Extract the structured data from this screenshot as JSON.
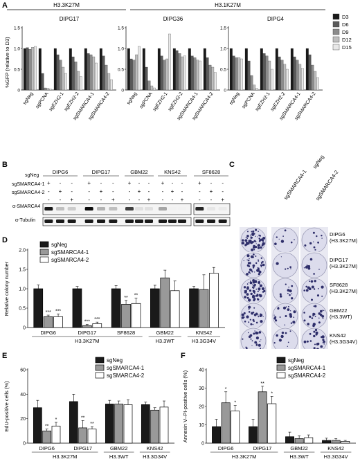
{
  "panels": {
    "A": "A",
    "B": "B",
    "C": "C",
    "D": "D",
    "E": "E",
    "F": "F"
  },
  "colors": {
    "D3": "#1a1a1a",
    "D6": "#595959",
    "D9": "#8c8c8c",
    "D12": "#bfbfbf",
    "D15": "#e8e8e8",
    "sgNeg": "#1a1a1a",
    "sgSMARCA4-1": "#999999",
    "sgSMARCA4-2": "#ffffff"
  },
  "panelA": {
    "header_left": "H3.3K27M",
    "header_right": "H3.1K27M",
    "ylabel": "%GFP (relative to D3)",
    "legend": [
      "D3",
      "D6",
      "D9",
      "D12",
      "D15"
    ],
    "charts": [
      {
        "title": "DIPG17"
      },
      {
        "title": "DIPG36"
      },
      {
        "title": "DIPG4"
      }
    ]
  },
  "chart_data": [
    {
      "type": "bar",
      "title": "DIPG17",
      "ylabel": "%GFP (relative to D3)",
      "ylim": [
        0,
        1.5
      ],
      "yticks": [
        "0",
        "0.5",
        "1.0",
        "1.5"
      ],
      "categories": [
        "sgNeg",
        "sgPCNA",
        "sgEZH2-1",
        "sgEZH2-2",
        "sgSMARCA4-1",
        "sgSMARCA4-2"
      ],
      "series": [
        {
          "name": "D3",
          "values": [
            1.0,
            1.0,
            1.0,
            1.0,
            1.0,
            1.0
          ]
        },
        {
          "name": "D6",
          "values": [
            1.02,
            0.4,
            0.85,
            0.8,
            0.88,
            0.82
          ]
        },
        {
          "name": "D9",
          "values": [
            0.98,
            0.05,
            0.72,
            0.68,
            0.85,
            0.6
          ]
        },
        {
          "name": "D12",
          "values": [
            1.03,
            0.04,
            0.55,
            0.45,
            0.8,
            0.4
          ]
        },
        {
          "name": "D15",
          "values": [
            1.05,
            0.02,
            0.4,
            0.32,
            0.65,
            0.25
          ]
        }
      ]
    },
    {
      "type": "bar",
      "title": "DIPG36",
      "ylabel": "%GFP (relative to D3)",
      "ylim": [
        0,
        1.5
      ],
      "yticks": [
        "0",
        "0.5",
        "1.0",
        "1.5"
      ],
      "categories": [
        "sgNeg",
        "sgPCNA",
        "sgEZH2-1",
        "sgEZH2-2",
        "sgSMARCA4-1",
        "sgSMARCA4-2"
      ],
      "series": [
        {
          "name": "D3",
          "values": [
            1.0,
            1.0,
            1.0,
            1.0,
            1.0,
            1.0
          ]
        },
        {
          "name": "D6",
          "values": [
            0.75,
            0.55,
            0.82,
            0.95,
            0.82,
            0.78
          ]
        },
        {
          "name": "D9",
          "values": [
            0.72,
            0.22,
            0.72,
            0.88,
            0.78,
            0.6
          ]
        },
        {
          "name": "D12",
          "values": [
            0.85,
            0.1,
            0.75,
            0.8,
            0.72,
            0.55
          ]
        },
        {
          "name": "D15",
          "values": [
            1.05,
            0.05,
            1.35,
            0.82,
            0.7,
            0.42
          ]
        }
      ]
    },
    {
      "type": "bar",
      "title": "DIPG4",
      "ylabel": "%GFP (relative to D3)",
      "ylim": [
        0,
        1.5
      ],
      "yticks": [
        "0",
        "0.5",
        "1.0",
        "1.5"
      ],
      "categories": [
        "sgNeg",
        "sgPCNA",
        "sgEZH2-1",
        "sgEZH2-2",
        "sgSMARCA4-1",
        "sgSMARCA4-2"
      ],
      "series": [
        {
          "name": "D3",
          "values": [
            1.0,
            1.0,
            1.0,
            1.0,
            1.0,
            1.0
          ]
        },
        {
          "name": "D6",
          "values": [
            0.82,
            0.7,
            0.88,
            0.8,
            0.8,
            0.85
          ]
        },
        {
          "name": "D9",
          "values": [
            0.78,
            0.35,
            0.82,
            0.72,
            0.72,
            0.6
          ]
        },
        {
          "name": "D12",
          "values": [
            0.78,
            0.12,
            0.7,
            0.62,
            0.62,
            0.45
          ]
        },
        {
          "name": "D15",
          "values": [
            0.75,
            0.04,
            0.5,
            0.5,
            0.52,
            0.3
          ]
        }
      ]
    },
    {
      "type": "bar",
      "title": "",
      "ylabel": "Relative colony number",
      "ylim": [
        0,
        2.0
      ],
      "yticks": [
        "0",
        "0.5",
        "1.0",
        "1.5",
        "2.0"
      ],
      "categories": [
        "DIPG6",
        "DIPG17",
        "SF8628",
        "GBM22",
        "KNS42"
      ],
      "groups": [
        {
          "label": "H3.3K27M",
          "span": [
            0,
            2
          ]
        },
        {
          "label": "H3.3WT",
          "span": [
            3,
            3
          ]
        },
        {
          "label": "H3.3G34V",
          "span": [
            4,
            4
          ]
        }
      ],
      "series": [
        {
          "name": "sgNeg",
          "values": [
            1.0,
            1.0,
            1.0,
            1.0,
            1.0
          ],
          "errors": [
            0.1,
            0.06,
            0.08,
            0.09,
            0.06
          ]
        },
        {
          "name": "sgSMARCA4-1",
          "values": [
            0.28,
            0.05,
            0.6,
            1.28,
            0.98
          ],
          "errors": [
            0.04,
            0.03,
            0.1,
            0.2,
            0.38
          ]
        },
        {
          "name": "sgSMARCA4-2",
          "values": [
            0.28,
            0.1,
            0.62,
            0.95,
            1.4
          ],
          "errors": [
            0.07,
            0.04,
            0.14,
            0.25,
            0.15
          ]
        }
      ],
      "significance": [
        [
          "",
          "***",
          "***"
        ],
        [
          "",
          "***",
          "***"
        ],
        [
          "",
          "**",
          "**"
        ],
        [
          "",
          "",
          ""
        ],
        [
          "",
          "",
          ""
        ]
      ]
    },
    {
      "type": "bar",
      "title": "",
      "ylabel": "EdU-positive cells (%)",
      "ylim": [
        0,
        60
      ],
      "yticks": [
        "0",
        "20",
        "40",
        "60"
      ],
      "categories": [
        "DIPG6",
        "DIPG17",
        "GBM22",
        "KNS42"
      ],
      "groups": [
        {
          "label": "H3.3K27M",
          "span": [
            0,
            1
          ]
        },
        {
          "label": "H3.3WT",
          "span": [
            2,
            2
          ]
        },
        {
          "label": "H3.3G34V",
          "span": [
            3,
            3
          ]
        }
      ],
      "series": [
        {
          "name": "sgNeg",
          "values": [
            29,
            34,
            32,
            31.5
          ],
          "errors": [
            6,
            6,
            3,
            2
          ]
        },
        {
          "name": "sgSMARCA4-1",
          "values": [
            10,
            12.5,
            32,
            27
          ],
          "errors": [
            1.5,
            6,
            2.5,
            2
          ]
        },
        {
          "name": "sgSMARCA4-2",
          "values": [
            14,
            11.5,
            31.5,
            29.5
          ],
          "errors": [
            3,
            2,
            4,
            5
          ]
        }
      ],
      "significance": [
        [
          "",
          "**",
          "*"
        ],
        [
          "",
          "**",
          "**"
        ],
        [
          "",
          "",
          ""
        ],
        [
          "",
          "",
          ""
        ]
      ]
    },
    {
      "type": "bar",
      "title": "",
      "ylabel": "Annexin V–PI-positive cells (%)",
      "ylim": [
        0,
        40
      ],
      "yticks": [
        "0",
        "10",
        "20",
        "30",
        "40"
      ],
      "categories": [
        "DIPG6",
        "DIPG17",
        "GBM22",
        "KNS42"
      ],
      "groups": [
        {
          "label": "H3.3K27M",
          "span": [
            0,
            1
          ]
        },
        {
          "label": "H3.3WT",
          "span": [
            2,
            2
          ]
        },
        {
          "label": "H3.3G34V",
          "span": [
            3,
            3
          ]
        }
      ],
      "series": [
        {
          "name": "sgNeg",
          "values": [
            9,
            9,
            3.5,
            1.5
          ],
          "errors": [
            4,
            4,
            2.5,
            1.2
          ]
        },
        {
          "name": "sgSMARCA4-1",
          "values": [
            22,
            28,
            2.5,
            1.5
          ],
          "errors": [
            6,
            3,
            1.5,
            1
          ]
        },
        {
          "name": "sgSMARCA4-2",
          "values": [
            17.5,
            21.5,
            3,
            1
          ],
          "errors": [
            3,
            4,
            1.5,
            0.5
          ]
        }
      ],
      "significance": [
        [
          "",
          "*",
          "*"
        ],
        [
          "",
          "**",
          "*"
        ],
        [
          "",
          "",
          ""
        ],
        [
          "",
          "",
          ""
        ]
      ]
    }
  ],
  "panelB": {
    "cell_lines": [
      "DIPG6",
      "DIPG17",
      "GBM22",
      "KNS42",
      "SF8628"
    ],
    "rows": [
      "sgNeg",
      "sgSMARCA4-1",
      "sgSMARCA4-2"
    ],
    "signs": {
      "sgNeg": [
        "+",
        "-",
        "-"
      ],
      "sgSMARCA4-1": [
        "-",
        "+",
        "-"
      ],
      "sgSMARCA4-2": [
        "-",
        "-",
        "+"
      ]
    },
    "blots": [
      "α-SMARCA4",
      "α-Tubulin"
    ]
  },
  "panelC": {
    "columns": [
      "sgNeg",
      "sgSMARCA4-1",
      "sgSMARCA4-2"
    ],
    "rows": [
      {
        "line1": "DIPG6",
        "line2": "(H3.3K27M)"
      },
      {
        "line1": "DIPG17",
        "line2": "(H3.3K27M)"
      },
      {
        "line1": "SF8628",
        "line2": "(H3.3K27M)"
      },
      {
        "line1": "GBM22",
        "line2": "(H3.3WT)"
      },
      {
        "line1": "KNS42",
        "line2": "(H3.3G34V)"
      }
    ]
  }
}
